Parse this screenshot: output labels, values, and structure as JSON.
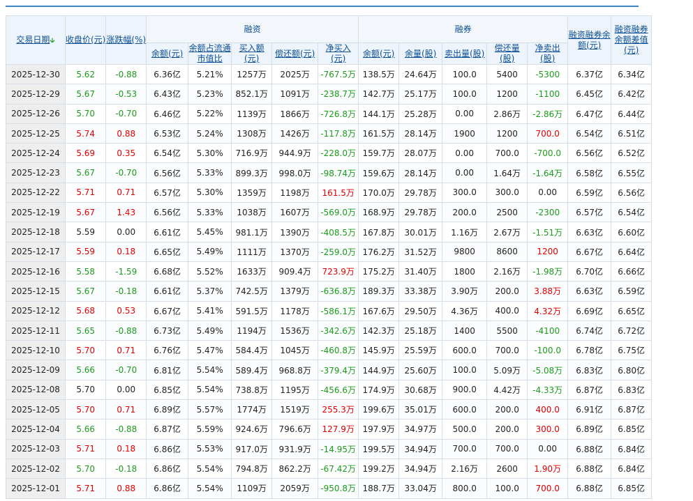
{
  "header": {
    "date": "交易日期",
    "close": "收盘价(元)",
    "change": "涨跌幅(%)",
    "margin_group": "融资",
    "short_group": "融券",
    "margin_cols": [
      "余额(元)",
      "余额占流通市值比",
      "买入额(元)",
      "偿还额(元)",
      "净买入(元)"
    ],
    "short_cols": [
      "余额(元)",
      "余量(股)",
      "卖出量(股)",
      "偿还量(股)",
      "净卖出(股)"
    ],
    "total_balance": "融资融券余额(元)",
    "balance_diff": "融资融券余额差值(元)"
  },
  "colors": {
    "up": "#e00000",
    "down": "#1c9c1c",
    "flat": "#222222"
  },
  "rows": [
    {
      "date": "2025-12-30",
      "close": "5.62",
      "chg": "-0.88",
      "dir": "d",
      "mb": "6.36亿",
      "mr": "5.21%",
      "buy": "1257万",
      "repay": "2025万",
      "net": "-767.5万",
      "nd": "d",
      "sb": "138.5万",
      "sv": "24.64万",
      "sell": "100.0",
      "srep": "5400",
      "snet": "-5300",
      "sd": "d",
      "tot": "6.37亿",
      "diff": "6.34亿"
    },
    {
      "date": "2025-12-29",
      "close": "5.67",
      "chg": "-0.53",
      "dir": "d",
      "mb": "6.43亿",
      "mr": "5.23%",
      "buy": "852.1万",
      "repay": "1091万",
      "net": "-238.7万",
      "nd": "d",
      "sb": "142.7万",
      "sv": "25.17万",
      "sell": "100.0",
      "srep": "1200",
      "snet": "-1100",
      "sd": "d",
      "tot": "6.45亿",
      "diff": "6.42亿"
    },
    {
      "date": "2025-12-26",
      "close": "5.70",
      "chg": "-0.70",
      "dir": "d",
      "mb": "6.46亿",
      "mr": "5.22%",
      "buy": "1139万",
      "repay": "1866万",
      "net": "-726.8万",
      "nd": "d",
      "sb": "144.1万",
      "sv": "25.28万",
      "sell": "0.00",
      "srep": "2.86万",
      "snet": "-2.86万",
      "sd": "d",
      "tot": "6.47亿",
      "diff": "6.44亿"
    },
    {
      "date": "2025-12-25",
      "close": "5.74",
      "chg": "0.88",
      "dir": "u",
      "mb": "6.53亿",
      "mr": "5.24%",
      "buy": "1308万",
      "repay": "1426万",
      "net": "-117.8万",
      "nd": "d",
      "sb": "161.5万",
      "sv": "28.14万",
      "sell": "1900",
      "srep": "1200",
      "snet": "700.0",
      "sd": "u",
      "tot": "6.54亿",
      "diff": "6.51亿"
    },
    {
      "date": "2025-12-24",
      "close": "5.69",
      "chg": "0.35",
      "dir": "u",
      "mb": "6.54亿",
      "mr": "5.30%",
      "buy": "716.9万",
      "repay": "944.9万",
      "net": "-228.0万",
      "nd": "d",
      "sb": "159.7万",
      "sv": "28.07万",
      "sell": "0.00",
      "srep": "700.0",
      "snet": "-700.0",
      "sd": "d",
      "tot": "6.56亿",
      "diff": "6.52亿"
    },
    {
      "date": "2025-12-23",
      "close": "5.67",
      "chg": "-0.70",
      "dir": "d",
      "mb": "6.56亿",
      "mr": "5.33%",
      "buy": "899.3万",
      "repay": "998.0万",
      "net": "-98.74万",
      "nd": "d",
      "sb": "159.6万",
      "sv": "28.14万",
      "sell": "0.00",
      "srep": "1.64万",
      "snet": "-1.64万",
      "sd": "d",
      "tot": "6.58亿",
      "diff": "6.55亿"
    },
    {
      "date": "2025-12-22",
      "close": "5.71",
      "chg": "0.71",
      "dir": "u",
      "mb": "6.57亿",
      "mr": "5.30%",
      "buy": "1359万",
      "repay": "1198万",
      "net": "161.5万",
      "nd": "u",
      "sb": "170.0万",
      "sv": "29.78万",
      "sell": "300.0",
      "srep": "300.0",
      "snet": "0.00",
      "sd": "f",
      "tot": "6.59亿",
      "diff": "6.56亿"
    },
    {
      "date": "2025-12-19",
      "close": "5.67",
      "chg": "1.43",
      "dir": "u",
      "mb": "6.56亿",
      "mr": "5.33%",
      "buy": "1038万",
      "repay": "1607万",
      "net": "-569.0万",
      "nd": "d",
      "sb": "168.9万",
      "sv": "29.78万",
      "sell": "200.0",
      "srep": "2500",
      "snet": "-2300",
      "sd": "d",
      "tot": "6.57亿",
      "diff": "6.54亿"
    },
    {
      "date": "2025-12-18",
      "close": "5.59",
      "chg": "0.00",
      "dir": "f",
      "mb": "6.61亿",
      "mr": "5.45%",
      "buy": "981.1万",
      "repay": "1390万",
      "net": "-408.5万",
      "nd": "d",
      "sb": "167.8万",
      "sv": "30.01万",
      "sell": "1.16万",
      "srep": "2.67万",
      "snet": "-1.51万",
      "sd": "d",
      "tot": "6.63亿",
      "diff": "6.60亿"
    },
    {
      "date": "2025-12-17",
      "close": "5.59",
      "chg": "0.18",
      "dir": "u",
      "mb": "6.65亿",
      "mr": "5.49%",
      "buy": "1111万",
      "repay": "1370万",
      "net": "-259.0万",
      "nd": "d",
      "sb": "176.2万",
      "sv": "31.52万",
      "sell": "9800",
      "srep": "8600",
      "snet": "1200",
      "sd": "u",
      "tot": "6.67亿",
      "diff": "6.64亿"
    },
    {
      "date": "2025-12-16",
      "close": "5.58",
      "chg": "-1.59",
      "dir": "d",
      "mb": "6.68亿",
      "mr": "5.52%",
      "buy": "1633万",
      "repay": "909.4万",
      "net": "723.9万",
      "nd": "u",
      "sb": "175.2万",
      "sv": "31.40万",
      "sell": "1800",
      "srep": "2.16万",
      "snet": "-1.98万",
      "sd": "d",
      "tot": "6.70亿",
      "diff": "6.66亿"
    },
    {
      "date": "2025-12-15",
      "close": "5.67",
      "chg": "-0.18",
      "dir": "d",
      "mb": "6.61亿",
      "mr": "5.37%",
      "buy": "742.5万",
      "repay": "1379万",
      "net": "-636.8万",
      "nd": "d",
      "sb": "189.3万",
      "sv": "33.38万",
      "sell": "3.90万",
      "srep": "200.0",
      "snet": "3.88万",
      "sd": "u",
      "tot": "6.63亿",
      "diff": "6.59亿"
    },
    {
      "date": "2025-12-12",
      "close": "5.68",
      "chg": "0.53",
      "dir": "u",
      "mb": "6.67亿",
      "mr": "5.41%",
      "buy": "591.5万",
      "repay": "1178万",
      "net": "-586.1万",
      "nd": "d",
      "sb": "167.6万",
      "sv": "29.50万",
      "sell": "4.36万",
      "srep": "400.0",
      "snet": "4.32万",
      "sd": "u",
      "tot": "6.69亿",
      "diff": "6.65亿"
    },
    {
      "date": "2025-12-11",
      "close": "5.65",
      "chg": "-0.88",
      "dir": "d",
      "mb": "6.73亿",
      "mr": "5.49%",
      "buy": "1194万",
      "repay": "1536万",
      "net": "-342.6万",
      "nd": "d",
      "sb": "142.3万",
      "sv": "25.18万",
      "sell": "1400",
      "srep": "5500",
      "snet": "-4100",
      "sd": "d",
      "tot": "6.74亿",
      "diff": "6.72亿"
    },
    {
      "date": "2025-12-10",
      "close": "5.70",
      "chg": "0.71",
      "dir": "u",
      "mb": "6.76亿",
      "mr": "5.47%",
      "buy": "584.4万",
      "repay": "1045万",
      "net": "-460.8万",
      "nd": "d",
      "sb": "145.9万",
      "sv": "25.59万",
      "sell": "600.0",
      "srep": "700.0",
      "snet": "-100.0",
      "sd": "d",
      "tot": "6.78亿",
      "diff": "6.75亿"
    },
    {
      "date": "2025-12-09",
      "close": "5.66",
      "chg": "-0.70",
      "dir": "d",
      "mb": "6.81亿",
      "mr": "5.54%",
      "buy": "589.4万",
      "repay": "968.8万",
      "net": "-379.4万",
      "nd": "d",
      "sb": "144.9万",
      "sv": "25.60万",
      "sell": "100.0",
      "srep": "5.09万",
      "snet": "-5.08万",
      "sd": "d",
      "tot": "6.83亿",
      "diff": "6.80亿"
    },
    {
      "date": "2025-12-08",
      "close": "5.70",
      "chg": "0.00",
      "dir": "f",
      "mb": "6.85亿",
      "mr": "5.54%",
      "buy": "738.8万",
      "repay": "1195万",
      "net": "-456.6万",
      "nd": "d",
      "sb": "174.9万",
      "sv": "30.68万",
      "sell": "900.0",
      "srep": "4.42万",
      "snet": "-4.33万",
      "sd": "d",
      "tot": "6.87亿",
      "diff": "6.83亿"
    },
    {
      "date": "2025-12-05",
      "close": "5.70",
      "chg": "0.71",
      "dir": "u",
      "mb": "6.89亿",
      "mr": "5.57%",
      "buy": "1774万",
      "repay": "1519万",
      "net": "255.3万",
      "nd": "u",
      "sb": "199.6万",
      "sv": "35.01万",
      "sell": "600.0",
      "srep": "200.0",
      "snet": "400.0",
      "sd": "u",
      "tot": "6.91亿",
      "diff": "6.87亿"
    },
    {
      "date": "2025-12-04",
      "close": "5.66",
      "chg": "-0.88",
      "dir": "d",
      "mb": "6.87亿",
      "mr": "5.59%",
      "buy": "924.6万",
      "repay": "796.6万",
      "net": "127.9万",
      "nd": "u",
      "sb": "197.9万",
      "sv": "34.97万",
      "sell": "500.0",
      "srep": "200.0",
      "snet": "300.0",
      "sd": "u",
      "tot": "6.89亿",
      "diff": "6.85亿"
    },
    {
      "date": "2025-12-03",
      "close": "5.71",
      "chg": "0.18",
      "dir": "u",
      "mb": "6.86亿",
      "mr": "5.53%",
      "buy": "917.0万",
      "repay": "931.9万",
      "net": "-14.95万",
      "nd": "d",
      "sb": "199.5万",
      "sv": "34.94万",
      "sell": "700.0",
      "srep": "700.0",
      "snet": "0.00",
      "sd": "f",
      "tot": "6.88亿",
      "diff": "6.84亿"
    },
    {
      "date": "2025-12-02",
      "close": "5.70",
      "chg": "-0.18",
      "dir": "d",
      "mb": "6.86亿",
      "mr": "5.54%",
      "buy": "794.8万",
      "repay": "862.2万",
      "net": "-67.42万",
      "nd": "d",
      "sb": "199.2万",
      "sv": "34.94万",
      "sell": "2.16万",
      "srep": "2600",
      "snet": "1.90万",
      "sd": "u",
      "tot": "6.88亿",
      "diff": "6.84亿"
    },
    {
      "date": "2025-12-01",
      "close": "5.71",
      "chg": "0.88",
      "dir": "u",
      "mb": "6.86亿",
      "mr": "5.54%",
      "buy": "1109万",
      "repay": "2059万",
      "net": "-950.8万",
      "nd": "d",
      "sb": "188.7万",
      "sv": "33.04万",
      "sell": "800.0",
      "srep": "100.0",
      "snet": "700.0",
      "sd": "u",
      "tot": "6.88亿",
      "diff": "6.85亿"
    }
  ]
}
